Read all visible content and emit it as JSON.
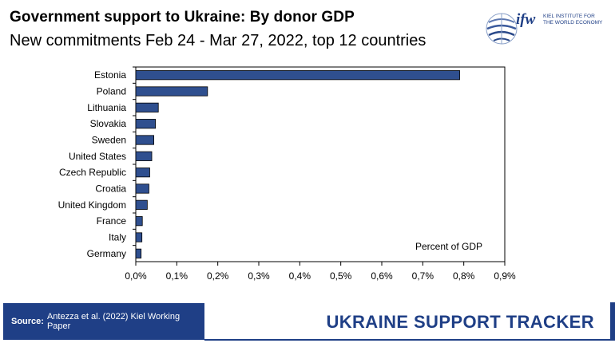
{
  "header": {
    "title": "Government support to Ukraine: By donor GDP",
    "subtitle": "New commitments Feb 24 - Mar 27, 2022, top 12 countries"
  },
  "logo": {
    "mark": "ifw",
    "line1": "KIEL INSTITUTE FOR",
    "line2": "THE WORLD ECONOMY"
  },
  "chart_data": {
    "type": "bar",
    "orientation": "horizontal",
    "categories": [
      "Estonia",
      "Poland",
      "Lithuania",
      "Slovakia",
      "Sweden",
      "United States",
      "Czech Republic",
      "Croatia",
      "United Kingdom",
      "France",
      "Italy",
      "Germany"
    ],
    "values": [
      0.79,
      0.175,
      0.055,
      0.048,
      0.044,
      0.039,
      0.034,
      0.032,
      0.028,
      0.016,
      0.015,
      0.013
    ],
    "xlabel": "Percent of GDP",
    "xlim": [
      0,
      0.9
    ],
    "xticks": [
      0,
      0.1,
      0.2,
      0.3,
      0.4,
      0.5,
      0.6,
      0.7,
      0.8,
      0.9
    ],
    "xtick_labels": [
      "0,0%",
      "0,1%",
      "0,2%",
      "0,3%",
      "0,4%",
      "0,5%",
      "0,6%",
      "0,7%",
      "0,8%",
      "0,9%"
    ],
    "bar_color": "#2f4f8f",
    "bar_edge_color": "#000000",
    "grid": false
  },
  "footer": {
    "source_label": "Source:",
    "source_text": "Antezza et al. (2022) Kiel Working Paper",
    "tracker": "UKRAINE SUPPORT TRACKER",
    "accent_color": "#1f3f86"
  }
}
